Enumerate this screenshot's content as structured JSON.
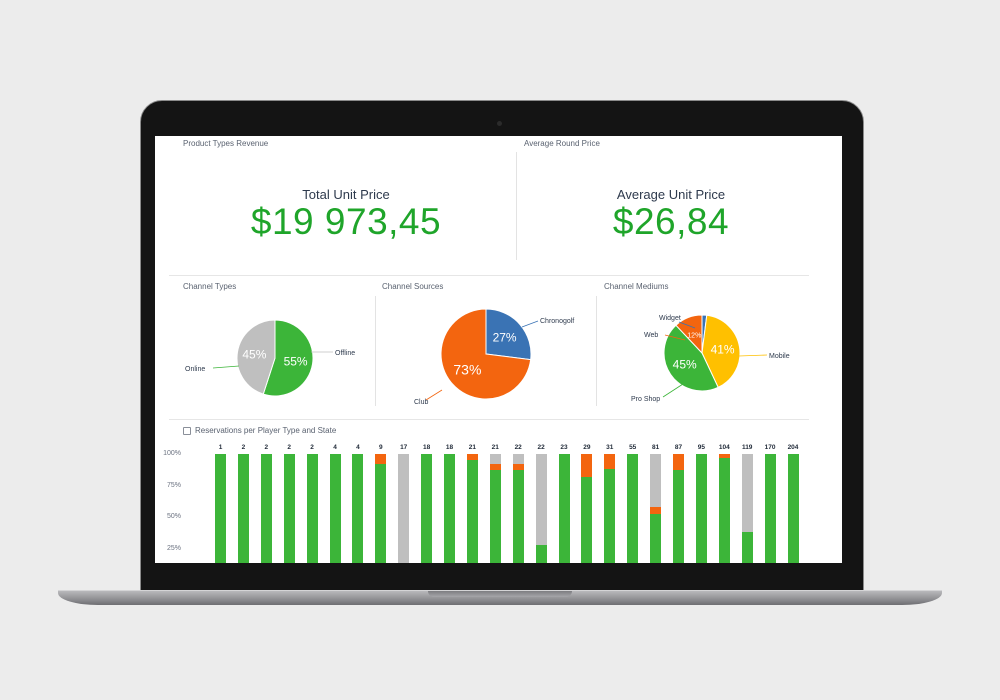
{
  "kpis": {
    "left": {
      "panel_title": "Product Types Revenue",
      "label": "Total Unit Price",
      "value": "$19 973,45"
    },
    "right": {
      "panel_title": "Average Round Price",
      "label": "Average Unit Price",
      "value": "$26,84"
    }
  },
  "colors": {
    "green": "#3cb539",
    "gray": "#bfbfbf",
    "orange": "#f3650f",
    "blue": "#3a73b4",
    "yellow": "#ffc000",
    "kpi_green": "#1fa52a"
  },
  "chart_data": [
    {
      "type": "pie",
      "title": "Channel Types",
      "slices": [
        {
          "name": "Online",
          "value": 55,
          "label": "55%",
          "color": "#3cb539"
        },
        {
          "name": "Offline",
          "value": 45,
          "label": "45%",
          "color": "#bfbfbf"
        }
      ]
    },
    {
      "type": "pie",
      "title": "Channel Sources",
      "slices": [
        {
          "name": "Chronogolf",
          "value": 27,
          "label": "27%",
          "color": "#3a73b4"
        },
        {
          "name": "Club",
          "value": 73,
          "label": "73%",
          "color": "#f3650f"
        }
      ]
    },
    {
      "type": "pie",
      "title": "Channel Mediums",
      "slices": [
        {
          "name": "Widget",
          "value": 2,
          "label": "",
          "color": "#3a73b4"
        },
        {
          "name": "Mobile",
          "value": 41,
          "label": "41%",
          "color": "#ffc000"
        },
        {
          "name": "Pro Shop",
          "value": 45,
          "label": "45%",
          "color": "#3cb539"
        },
        {
          "name": "Web",
          "value": 12,
          "label": "12%",
          "color": "#f3650f"
        }
      ]
    },
    {
      "type": "bar",
      "title": "Reservations per Player Type and State",
      "stacked": true,
      "y_ticks": [
        "100%",
        "75%",
        "50%",
        "25%"
      ],
      "ylim": [
        0,
        100
      ],
      "categories": [
        "1",
        "2",
        "2",
        "2",
        "2",
        "4",
        "4",
        "9",
        "17",
        "18",
        "18",
        "21",
        "21",
        "22",
        "22",
        "23",
        "29",
        "31",
        "55",
        "81",
        "87",
        "95",
        "104",
        "119",
        "170",
        "204"
      ],
      "series": [
        {
          "color": "#bfbfbf",
          "values": [
            0,
            0,
            0,
            0,
            0,
            0,
            0,
            0,
            87,
            0,
            0,
            0,
            8,
            8,
            72,
            0,
            0,
            0,
            0,
            42,
            0,
            0,
            0,
            62,
            0,
            0
          ]
        },
        {
          "color": "#f3650f",
          "values": [
            0,
            0,
            0,
            0,
            0,
            0,
            0,
            8,
            0,
            0,
            0,
            5,
            5,
            5,
            0,
            0,
            18,
            12,
            0,
            6,
            13,
            0,
            3,
            0,
            0,
            0
          ]
        },
        {
          "color": "#3cb539",
          "values": [
            100,
            100,
            100,
            100,
            100,
            100,
            100,
            92,
            13,
            100,
            100,
            95,
            87,
            87,
            28,
            100,
            82,
            88,
            100,
            52,
            87,
            100,
            97,
            38,
            100,
            100
          ]
        }
      ]
    }
  ]
}
